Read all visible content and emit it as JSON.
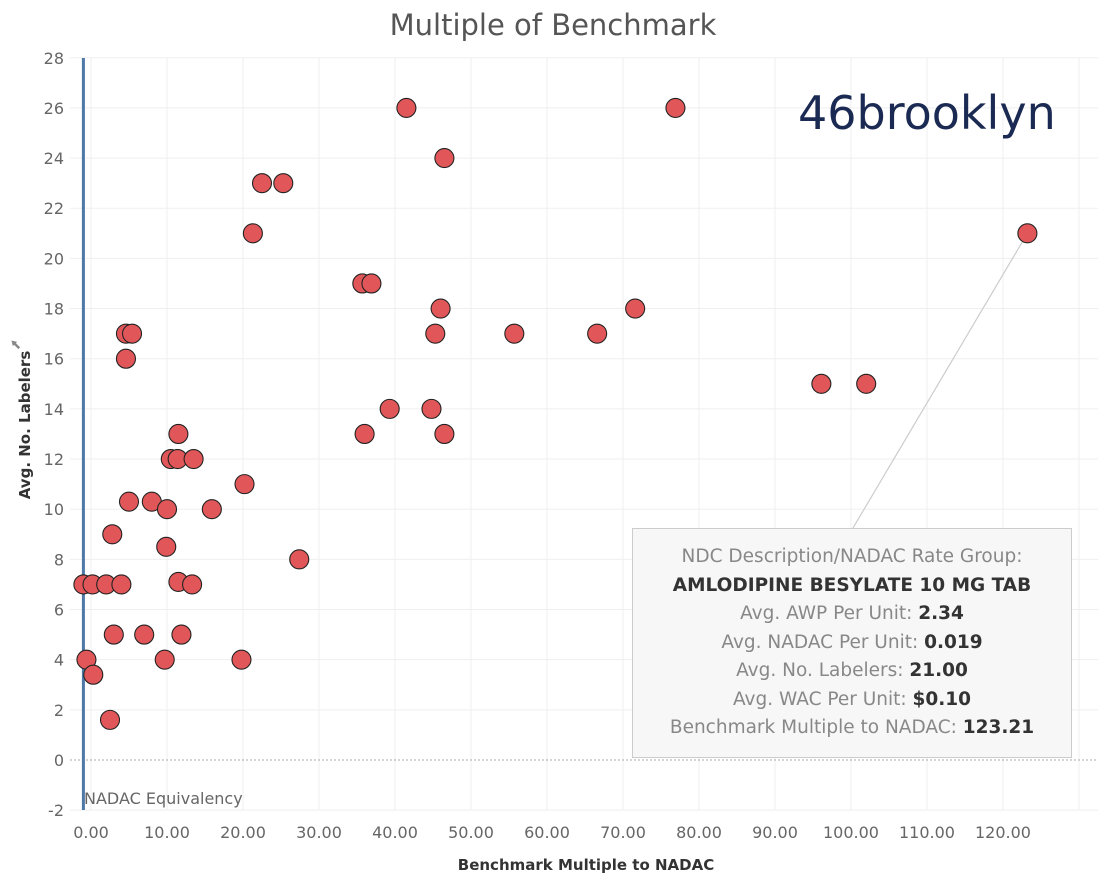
{
  "chart_data": {
    "type": "scatter",
    "title": "Multiple of Benchmark",
    "xlabel": "Benchmark Multiple to NADAC",
    "ylabel": "Avg. No. Labelers",
    "xlim": [
      -2,
      130
    ],
    "ylim": [
      -2,
      28
    ],
    "x_ticks": [
      "0.00",
      "10.00",
      "20.00",
      "30.00",
      "40.00",
      "50.00",
      "60.00",
      "70.00",
      "80.00",
      "90.00",
      "100.00",
      "110.00",
      "120.00"
    ],
    "y_ticks": [
      "-2",
      "0",
      "2",
      "4",
      "6",
      "8",
      "10",
      "12",
      "14",
      "16",
      "18",
      "20",
      "22",
      "24",
      "26",
      "28"
    ],
    "grid": true,
    "marker_color": "#e15759",
    "reference_line": {
      "x": -1,
      "label": "NADAC Equivalency",
      "color": "#4e79a7"
    },
    "points": [
      {
        "x": -1.0,
        "y": 7
      },
      {
        "x": 0.2,
        "y": 7
      },
      {
        "x": -0.6,
        "y": 4
      },
      {
        "x": 0.3,
        "y": 3.4
      },
      {
        "x": 2.0,
        "y": 7
      },
      {
        "x": 4.0,
        "y": 7
      },
      {
        "x": 2.5,
        "y": 1.6
      },
      {
        "x": 2.8,
        "y": 9
      },
      {
        "x": 3.0,
        "y": 5
      },
      {
        "x": 4.6,
        "y": 17
      },
      {
        "x": 5.4,
        "y": 17
      },
      {
        "x": 4.6,
        "y": 16
      },
      {
        "x": 5.0,
        "y": 10.3
      },
      {
        "x": 8.0,
        "y": 10.3
      },
      {
        "x": 10.0,
        "y": 10
      },
      {
        "x": 7.0,
        "y": 5
      },
      {
        "x": 9.7,
        "y": 4
      },
      {
        "x": 9.9,
        "y": 8.5
      },
      {
        "x": 10.5,
        "y": 12
      },
      {
        "x": 11.4,
        "y": 12
      },
      {
        "x": 11.5,
        "y": 13
      },
      {
        "x": 13.5,
        "y": 12
      },
      {
        "x": 11.5,
        "y": 7.1
      },
      {
        "x": 13.3,
        "y": 7
      },
      {
        "x": 11.9,
        "y": 5
      },
      {
        "x": 15.9,
        "y": 10
      },
      {
        "x": 19.8,
        "y": 4
      },
      {
        "x": 20.2,
        "y": 11
      },
      {
        "x": 21.3,
        "y": 21
      },
      {
        "x": 22.5,
        "y": 23
      },
      {
        "x": 25.3,
        "y": 23
      },
      {
        "x": 27.4,
        "y": 8
      },
      {
        "x": 35.7,
        "y": 19
      },
      {
        "x": 36.9,
        "y": 19
      },
      {
        "x": 36.0,
        "y": 13
      },
      {
        "x": 39.3,
        "y": 14
      },
      {
        "x": 41.5,
        "y": 26
      },
      {
        "x": 44.8,
        "y": 14
      },
      {
        "x": 45.3,
        "y": 17
      },
      {
        "x": 46.0,
        "y": 18
      },
      {
        "x": 46.5,
        "y": 24
      },
      {
        "x": 46.5,
        "y": 13
      },
      {
        "x": 55.7,
        "y": 17
      },
      {
        "x": 66.6,
        "y": 17
      },
      {
        "x": 71.6,
        "y": 18
      },
      {
        "x": 76.9,
        "y": 26
      },
      {
        "x": 96.1,
        "y": 15
      },
      {
        "x": 102.0,
        "y": 15
      },
      {
        "x": 123.21,
        "y": 21
      }
    ]
  },
  "logo": {
    "text": "46brooklyn"
  },
  "tooltip": {
    "header": "NDC Description/NADAC Rate Group:",
    "description": "AMLODIPINE BESYLATE 10 MG TAB",
    "fields": [
      {
        "label": "Avg. AWP Per Unit:",
        "value": "2.34"
      },
      {
        "label": "Avg. NADAC Per Unit:",
        "value": "0.019"
      },
      {
        "label": "Avg. No. Labelers:",
        "value": "21.00"
      },
      {
        "label": "Avg. WAC Per Unit:",
        "value": "$0.10"
      },
      {
        "label": "Benchmark Multiple to NADAC:",
        "value": "123.21"
      }
    ],
    "target": {
      "x": 123.21,
      "y": 21
    }
  }
}
